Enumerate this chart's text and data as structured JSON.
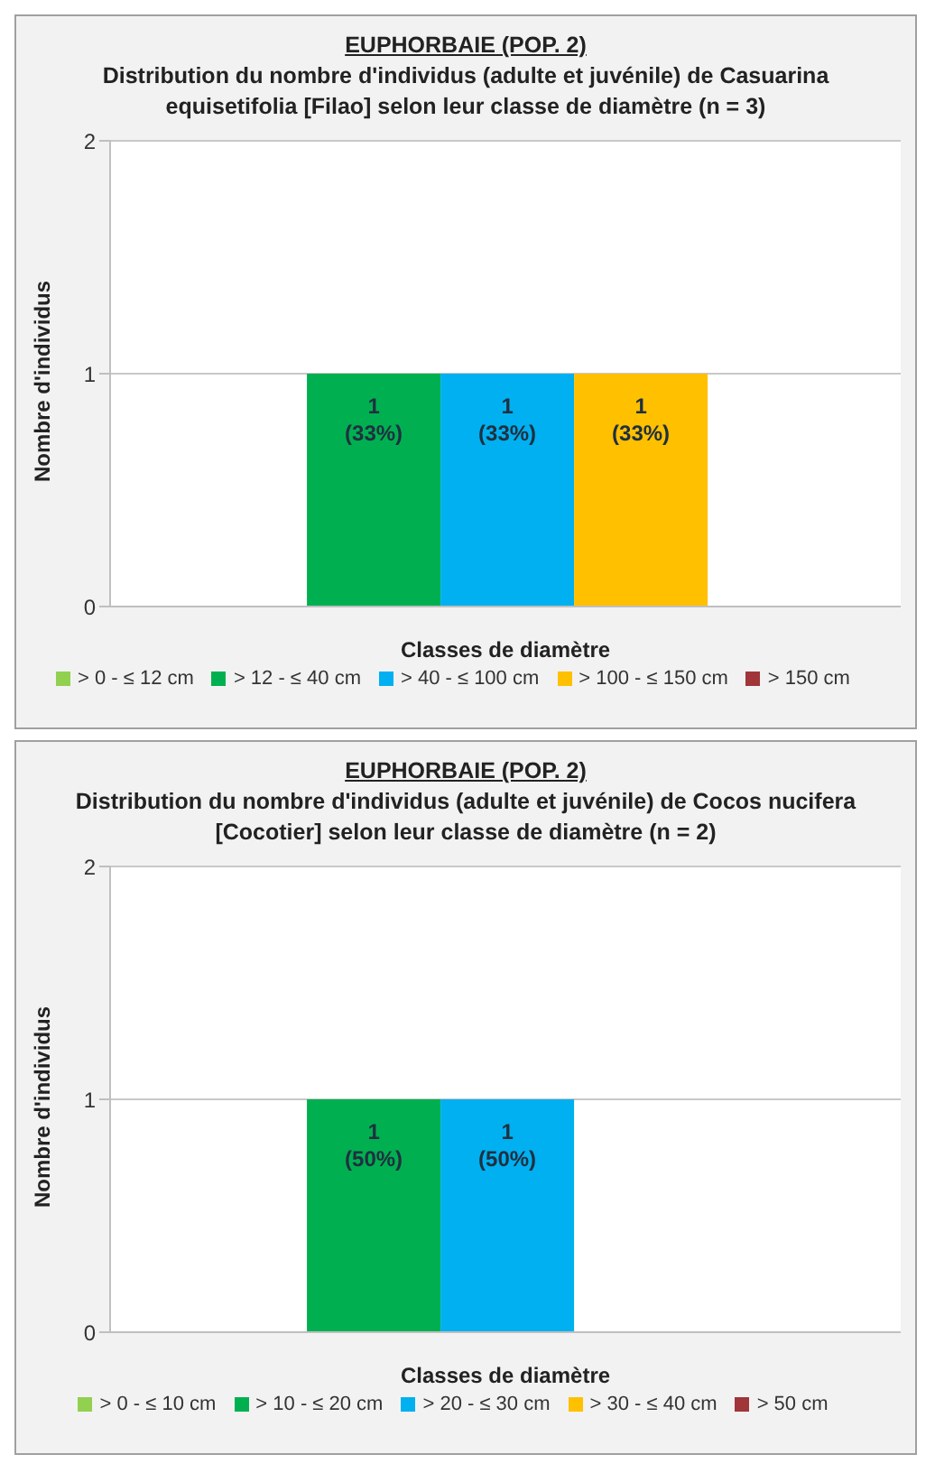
{
  "chart_data": [
    {
      "type": "bar",
      "title": "EUPHORBAIE (POP. 2)",
      "subtitle": "Distribution du nombre d'individus (adulte et juvénile) de Casuarina equisetifolia  [Filao] selon leur classe de diamètre (n = 3)",
      "xlabel": "Classes de diamètre",
      "ylabel": "Nombre d'individus",
      "categories": [
        null
      ],
      "series": [
        {
          "name": "> 0 - ≤ 12 cm",
          "color": "#92d050",
          "values": [
            0
          ]
        },
        {
          "name": "> 12 -  ≤ 40 cm",
          "color": "#00b050",
          "values": [
            1
          ],
          "value_labels": [
            "1 (33%)"
          ]
        },
        {
          "name": "> 40 - ≤ 100 cm",
          "color": "#00b0f0",
          "values": [
            1
          ],
          "value_labels": [
            "1 (33%)"
          ]
        },
        {
          "name": "> 100 - ≤ 150 cm",
          "color": "#ffc000",
          "values": [
            1
          ],
          "value_labels": [
            "1 (33%)"
          ]
        },
        {
          "name": "> 150 cm",
          "color": "#a0353a",
          "values": [
            0
          ]
        }
      ],
      "ylim": [
        0,
        2
      ],
      "yticks": [
        0,
        1,
        2
      ],
      "grid": "y",
      "legend": "bottom"
    },
    {
      "type": "bar",
      "title": "EUPHORBAIE (POP. 2)",
      "subtitle": "Distribution du nombre d'individus (adulte et juvénile) de Cocos nucifera [Cocotier] selon leur classe de diamètre (n = 2)",
      "xlabel": "Classes de diamètre",
      "ylabel": "Nombre d'individus",
      "categories": [
        null
      ],
      "series": [
        {
          "name": "> 0 - ≤ 10 cm",
          "color": "#92d050",
          "values": [
            0
          ]
        },
        {
          "name": "> 10 -  ≤ 20 cm",
          "color": "#00b050",
          "values": [
            1
          ],
          "value_labels": [
            "1 (50%)"
          ]
        },
        {
          "name": "> 20 - ≤ 30 cm",
          "color": "#00b0f0",
          "values": [
            1
          ],
          "value_labels": [
            "1 (50%)"
          ]
        },
        {
          "name": "> 30 - ≤ 40 cm",
          "color": "#ffc000",
          "values": [
            0
          ]
        },
        {
          "name": "> 50 cm",
          "color": "#a0353a",
          "values": [
            0
          ]
        }
      ],
      "ylim": [
        0,
        2
      ],
      "yticks": [
        0,
        1,
        2
      ],
      "grid": "y",
      "legend": "bottom"
    }
  ]
}
